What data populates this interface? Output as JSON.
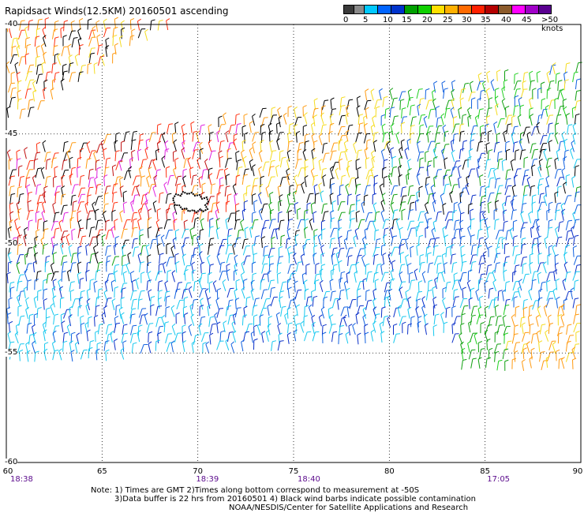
{
  "title": "Rapidsact Winds(12.5KM) 20160501 ascending",
  "colorbar": {
    "colors": [
      "#3a3a3a",
      "#8a8a8a",
      "#00c8ff",
      "#0064ff",
      "#0033cc",
      "#00a000",
      "#0fd000",
      "#ffe000",
      "#ffb000",
      "#ff6a00",
      "#ff2000",
      "#b40000",
      "#8b5a2b",
      "#ff00ff",
      "#a000c8",
      "#5a0090"
    ],
    "labels": [
      "0",
      "5",
      "10",
      "15",
      "20",
      "25",
      "30",
      "35",
      "40",
      "45",
      ">50 knots"
    ]
  },
  "lat_labels": [
    "-40",
    "-45",
    "-50",
    "-55",
    "-60"
  ],
  "lon_labels": [
    "60",
    "65",
    "70",
    "75",
    "80",
    "85",
    "90"
  ],
  "time_labels": [
    "18:38",
    "18:39",
    "18:40",
    "17:05"
  ],
  "notes": {
    "line1": "Note: 1) Times are GMT 2)Times along bottom correspond to measurement at -50S",
    "line2": "3)Data buffer is 22 hrs from 20160501 4) Black wind barbs indicate possible contamination",
    "line3": "NOAA/NESDIS/Center for Satellite Applications and Research"
  },
  "map": {
    "lat_range": [
      -60,
      -40
    ],
    "lon_range": [
      60,
      90
    ],
    "grid": "dotted",
    "island_name": "",
    "swaths": [
      {
        "name": "",
        "color_pattern": "yellow-orange-red"
      },
      {
        "name": "",
        "color_pattern": "green-blue-yellow"
      },
      {
        "name": "",
        "color_pattern": "cyan-blue"
      },
      {
        "name": "",
        "color_pattern": "green-yellow"
      }
    ]
  }
}
